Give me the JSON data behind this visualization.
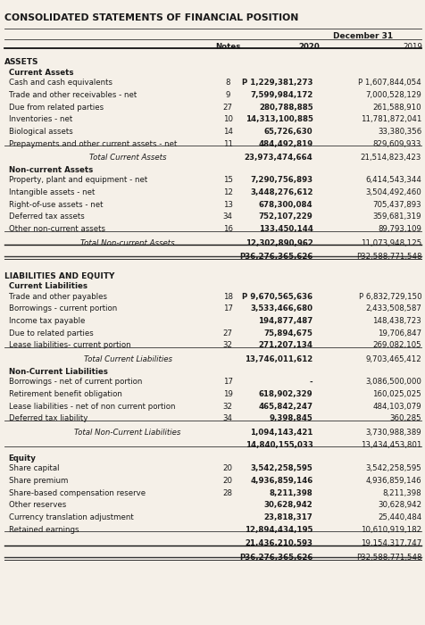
{
  "title": "CONSOLIDATED STATEMENTS OF FINANCIAL POSITION",
  "header_date": "December 31",
  "col_headers": [
    "Notes",
    "2020",
    "2019"
  ],
  "rows": [
    {
      "label": "ASSETS",
      "type": "section_header"
    },
    {
      "label": "Current Assets",
      "type": "subsection_header"
    },
    {
      "label": "Cash and cash equivalents",
      "note": "8",
      "v2020": "P 1,229,381,273",
      "v2019": "P 1,607,844,054"
    },
    {
      "label": "Trade and other receivables - net",
      "note": "9",
      "v2020": "7,599,984,172",
      "v2019": "7,000,528,129"
    },
    {
      "label": "Due from related parties",
      "note": "27",
      "v2020": "280,788,885",
      "v2019": "261,588,910"
    },
    {
      "label": "Inventories - net",
      "note": "10",
      "v2020": "14,313,100,885",
      "v2019": "11,781,872,041"
    },
    {
      "label": "Biological assets",
      "note": "14",
      "v2020": "65,726,630",
      "v2019": "33,380,356"
    },
    {
      "label": "Prepayments and other current assets - net",
      "note": "11",
      "v2020": "484,492,819",
      "v2019": "829,609,933"
    },
    {
      "label": "Total Current Assets",
      "type": "subtotal",
      "v2020": "23,973,474,664",
      "v2019": "21,514,823,423",
      "line_above": true
    },
    {
      "label": "Non-current Assets",
      "type": "subsection_header"
    },
    {
      "label": "Property, plant and equipment - net",
      "note": "15",
      "v2020": "7,290,756,893",
      "v2019": "6,414,543,344"
    },
    {
      "label": "Intangible assets - net",
      "note": "12",
      "v2020": "3,448,276,612",
      "v2019": "3,504,492,460"
    },
    {
      "label": "Right-of-use assets - net",
      "note": "13",
      "v2020": "678,300,084",
      "v2019": "705,437,893"
    },
    {
      "label": "Deferred tax assets",
      "note": "34",
      "v2020": "752,107,229",
      "v2019": "359,681,319"
    },
    {
      "label": "Other non-current assets",
      "note": "16",
      "v2020": "133,450,144",
      "v2019": "89,793,109"
    },
    {
      "label": "Total Non-current Assets",
      "type": "subtotal",
      "v2020": "12,302,890,962",
      "v2019": "11,073,948,125",
      "line_above": true
    },
    {
      "label": "",
      "type": "grand_total",
      "v2020": "P36,276,365,626",
      "v2019": "P32,588,771,548"
    },
    {
      "label": "LIABILITIES AND EQUITY",
      "type": "section_header"
    },
    {
      "label": "Current Liabilities",
      "type": "subsection_header"
    },
    {
      "label": "Trade and other payables",
      "note": "18",
      "v2020": "P 9,670,565,636",
      "v2019": "P 6,832,729,150"
    },
    {
      "label": "Borrowings - current portion",
      "note": "17",
      "v2020": "3,533,466,680",
      "v2019": "2,433,508,587"
    },
    {
      "label": "Income tax payable",
      "note": "",
      "v2020": "194,877,487",
      "v2019": "148,438,723"
    },
    {
      "label": "Due to related parties",
      "note": "27",
      "v2020": "75,894,675",
      "v2019": "19,706,847"
    },
    {
      "label": "Lease liabilities- current portion",
      "note": "32",
      "v2020": "271,207,134",
      "v2019": "269,082,105"
    },
    {
      "label": "Total Current Liabilities",
      "type": "subtotal",
      "v2020": "13,746,011,612",
      "v2019": "9,703,465,412",
      "line_above": true
    },
    {
      "label": "Non-Current Liabilities",
      "type": "subsection_header"
    },
    {
      "label": "Borrowings - net of current portion",
      "note": "17",
      "v2020": "-",
      "v2019": "3,086,500,000"
    },
    {
      "label": "Retirement benefit obligation",
      "note": "19",
      "v2020": "618,902,329",
      "v2019": "160,025,025"
    },
    {
      "label": "Lease liabilities - net of non current portion",
      "note": "32",
      "v2020": "465,842,247",
      "v2019": "484,103,079"
    },
    {
      "label": "Deferred tax liability",
      "note": "34",
      "v2020": "9,398,845",
      "v2019": "360,285"
    },
    {
      "label": "Total Non-Current Liabilities",
      "type": "subtotal",
      "v2020": "1,094,143,421",
      "v2019": "3,730,988,389",
      "line_above": true
    },
    {
      "label": "",
      "type": "subtotal2",
      "v2020": "14,840,155,033",
      "v2019": "13,434,453,801"
    },
    {
      "label": "Equity",
      "type": "subsection_header"
    },
    {
      "label": "Share capital",
      "note": "20",
      "v2020": "3,542,258,595",
      "v2019": "3,542,258,595"
    },
    {
      "label": "Share premium",
      "note": "20",
      "v2020": "4,936,859,146",
      "v2019": "4,936,859,146"
    },
    {
      "label": "Share-based compensation reserve",
      "note": "28",
      "v2020": "8,211,398",
      "v2019": "8,211,398"
    },
    {
      "label": "Other reserves",
      "note": "",
      "v2020": "30,628,942",
      "v2019": "30,628,942"
    },
    {
      "label": "Currency translation adjustment",
      "note": "",
      "v2020": "23,818,317",
      "v2019": "25,440,484"
    },
    {
      "label": "Retained earnings",
      "note": "",
      "v2020": "12,894,434,195",
      "v2019": "10,610,919,182"
    },
    {
      "label": "",
      "type": "subtotal",
      "v2020": "21,436,210,593",
      "v2019": "19,154,317,747",
      "line_above": true
    },
    {
      "label": "",
      "type": "grand_total",
      "v2020": "P36,276,365,626",
      "v2019": "P32,588,771,548"
    }
  ],
  "bg_color": "#f5f0e8",
  "text_color": "#1a1a1a",
  "font_size": 6.2
}
